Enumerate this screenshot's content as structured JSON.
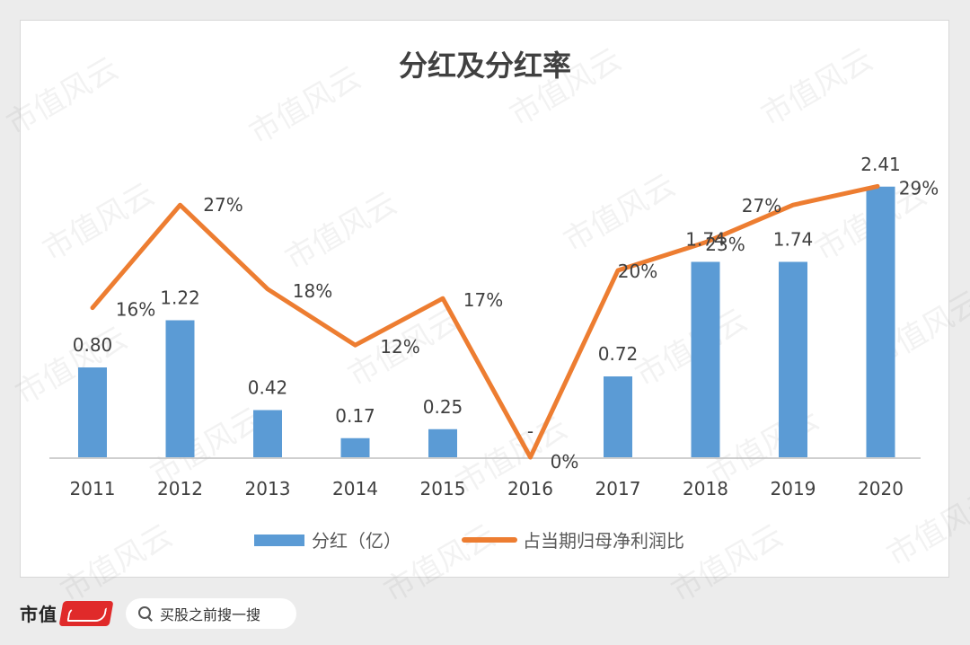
{
  "chart_data": {
    "type": "bar+line",
    "title": "分红及分红率",
    "categories": [
      "2011",
      "2012",
      "2013",
      "2014",
      "2015",
      "2016",
      "2017",
      "2018",
      "2019",
      "2020"
    ],
    "series": [
      {
        "name": "分红（亿）",
        "type": "bar",
        "color": "#5b9bd5",
        "values": [
          0.8,
          1.22,
          0.42,
          0.17,
          0.25,
          0,
          0.72,
          1.74,
          1.74,
          2.41
        ],
        "labels": [
          "0.80",
          "1.22",
          "0.42",
          "0.17",
          "0.25",
          "-",
          "0.72",
          "1.74",
          "1.74",
          "2.41"
        ]
      },
      {
        "name": "占当期归母净利润比",
        "type": "line",
        "color": "#ed7d31",
        "values": [
          16,
          27,
          18,
          12,
          17,
          0,
          20,
          23,
          27,
          29
        ],
        "labels": [
          "16%",
          "27%",
          "18%",
          "12%",
          "17%",
          "0%",
          "20%",
          "23%",
          "27%",
          "29%"
        ]
      }
    ],
    "bar_axis_range": [
      0,
      2.5
    ],
    "line_axis_range": [
      0,
      35
    ],
    "grid": false,
    "legend_position": "bottom"
  },
  "footer": {
    "brand": "市值",
    "seal_icon": "brand-seal-icon",
    "search_icon": "search-icon",
    "search_text": "买股之前搜一搜"
  },
  "watermark": {
    "text": "市值风云"
  }
}
